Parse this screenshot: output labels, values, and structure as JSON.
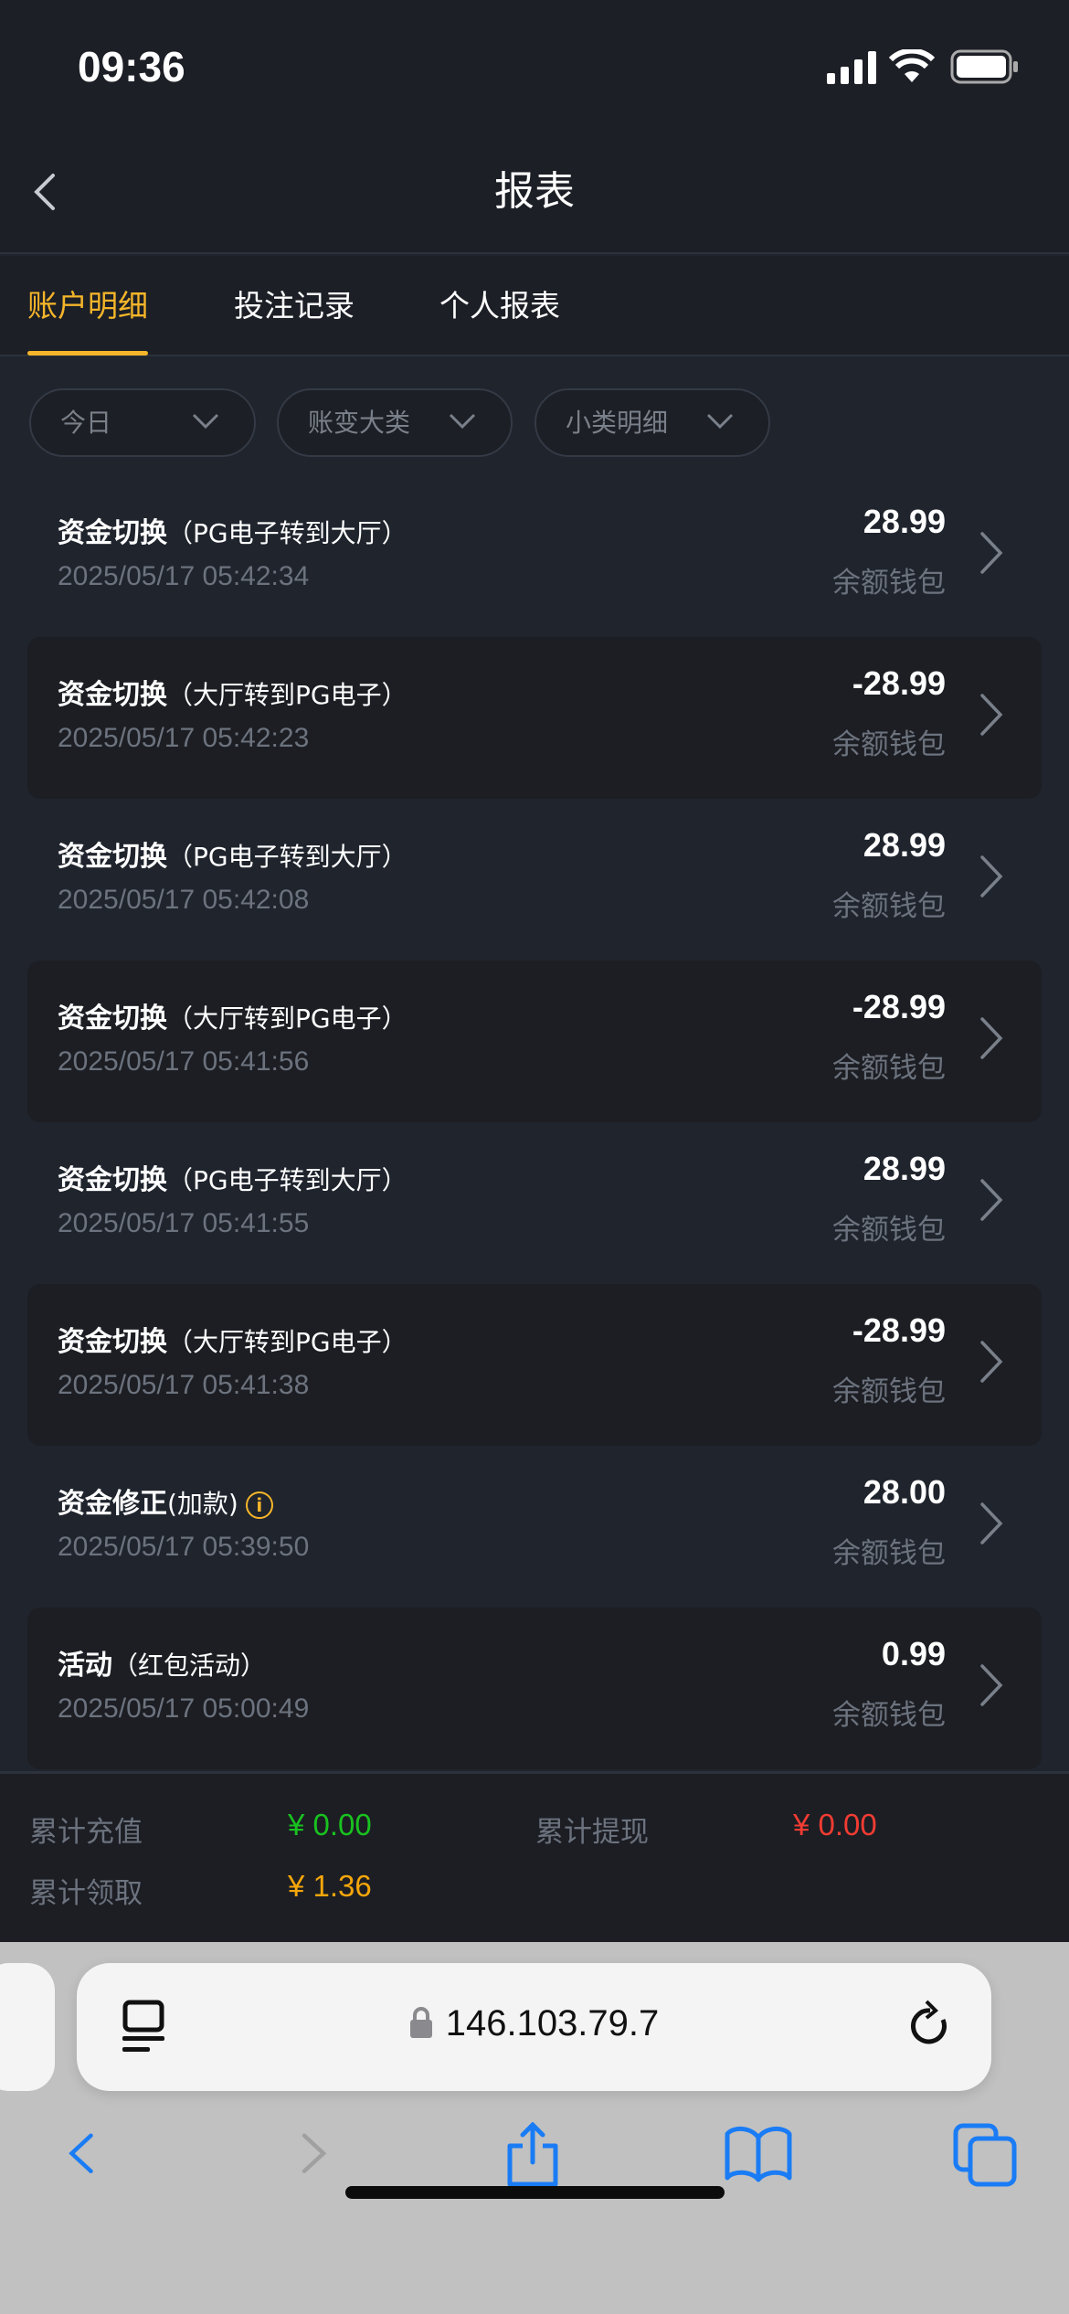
{
  "status_bar": {
    "time": "09:36"
  },
  "header": {
    "title": "报表"
  },
  "tabs": [
    {
      "label": "账户明细",
      "active": true
    },
    {
      "label": "投注记录"
    },
    {
      "label": "个人报表"
    }
  ],
  "filters": [
    {
      "label": "今日"
    },
    {
      "label": "账变大类"
    },
    {
      "label": "小类明细"
    }
  ],
  "records": [
    {
      "title": "资金切换",
      "sub": "（PG电子转到大厅）",
      "time": "2025/05/17 05:42:34",
      "amount": "28.99",
      "wallet": "余额钱包"
    },
    {
      "title": "资金切换",
      "sub": "（大厅转到PG电子）",
      "time": "2025/05/17 05:42:23",
      "amount": "-28.99",
      "wallet": "余额钱包"
    },
    {
      "title": "资金切换",
      "sub": "（PG电子转到大厅）",
      "time": "2025/05/17 05:42:08",
      "amount": "28.99",
      "wallet": "余额钱包"
    },
    {
      "title": "资金切换",
      "sub": "（大厅转到PG电子）",
      "time": "2025/05/17 05:41:56",
      "amount": "-28.99",
      "wallet": "余额钱包"
    },
    {
      "title": "资金切换",
      "sub": "（PG电子转到大厅）",
      "time": "2025/05/17 05:41:55",
      "amount": "28.99",
      "wallet": "余额钱包"
    },
    {
      "title": "资金切换",
      "sub": "（大厅转到PG电子）",
      "time": "2025/05/17 05:41:38",
      "amount": "-28.99",
      "wallet": "余额钱包"
    },
    {
      "title": "资金修正",
      "sub": "(加款)",
      "time": "2025/05/17 05:39:50",
      "amount": "28.00",
      "wallet": "余额钱包",
      "info_icon": true
    },
    {
      "title": "活动",
      "sub": "（红包活动）",
      "time": "2025/05/17 05:00:49",
      "amount": "0.99",
      "wallet": "余额钱包"
    }
  ],
  "summary": {
    "deposit_label": "累计充值",
    "deposit_value": "¥ 0.00",
    "deposit_color": "#19c21f",
    "withdraw_label": "累计提现",
    "withdraw_value": "¥ 0.00",
    "withdraw_color": "#f23c32",
    "claim_label": "累计领取",
    "claim_value": "¥ 1.36",
    "claim_color": "#f5a60a"
  },
  "browser": {
    "url": "146.103.79.7",
    "accent": "#1a7cf5"
  }
}
